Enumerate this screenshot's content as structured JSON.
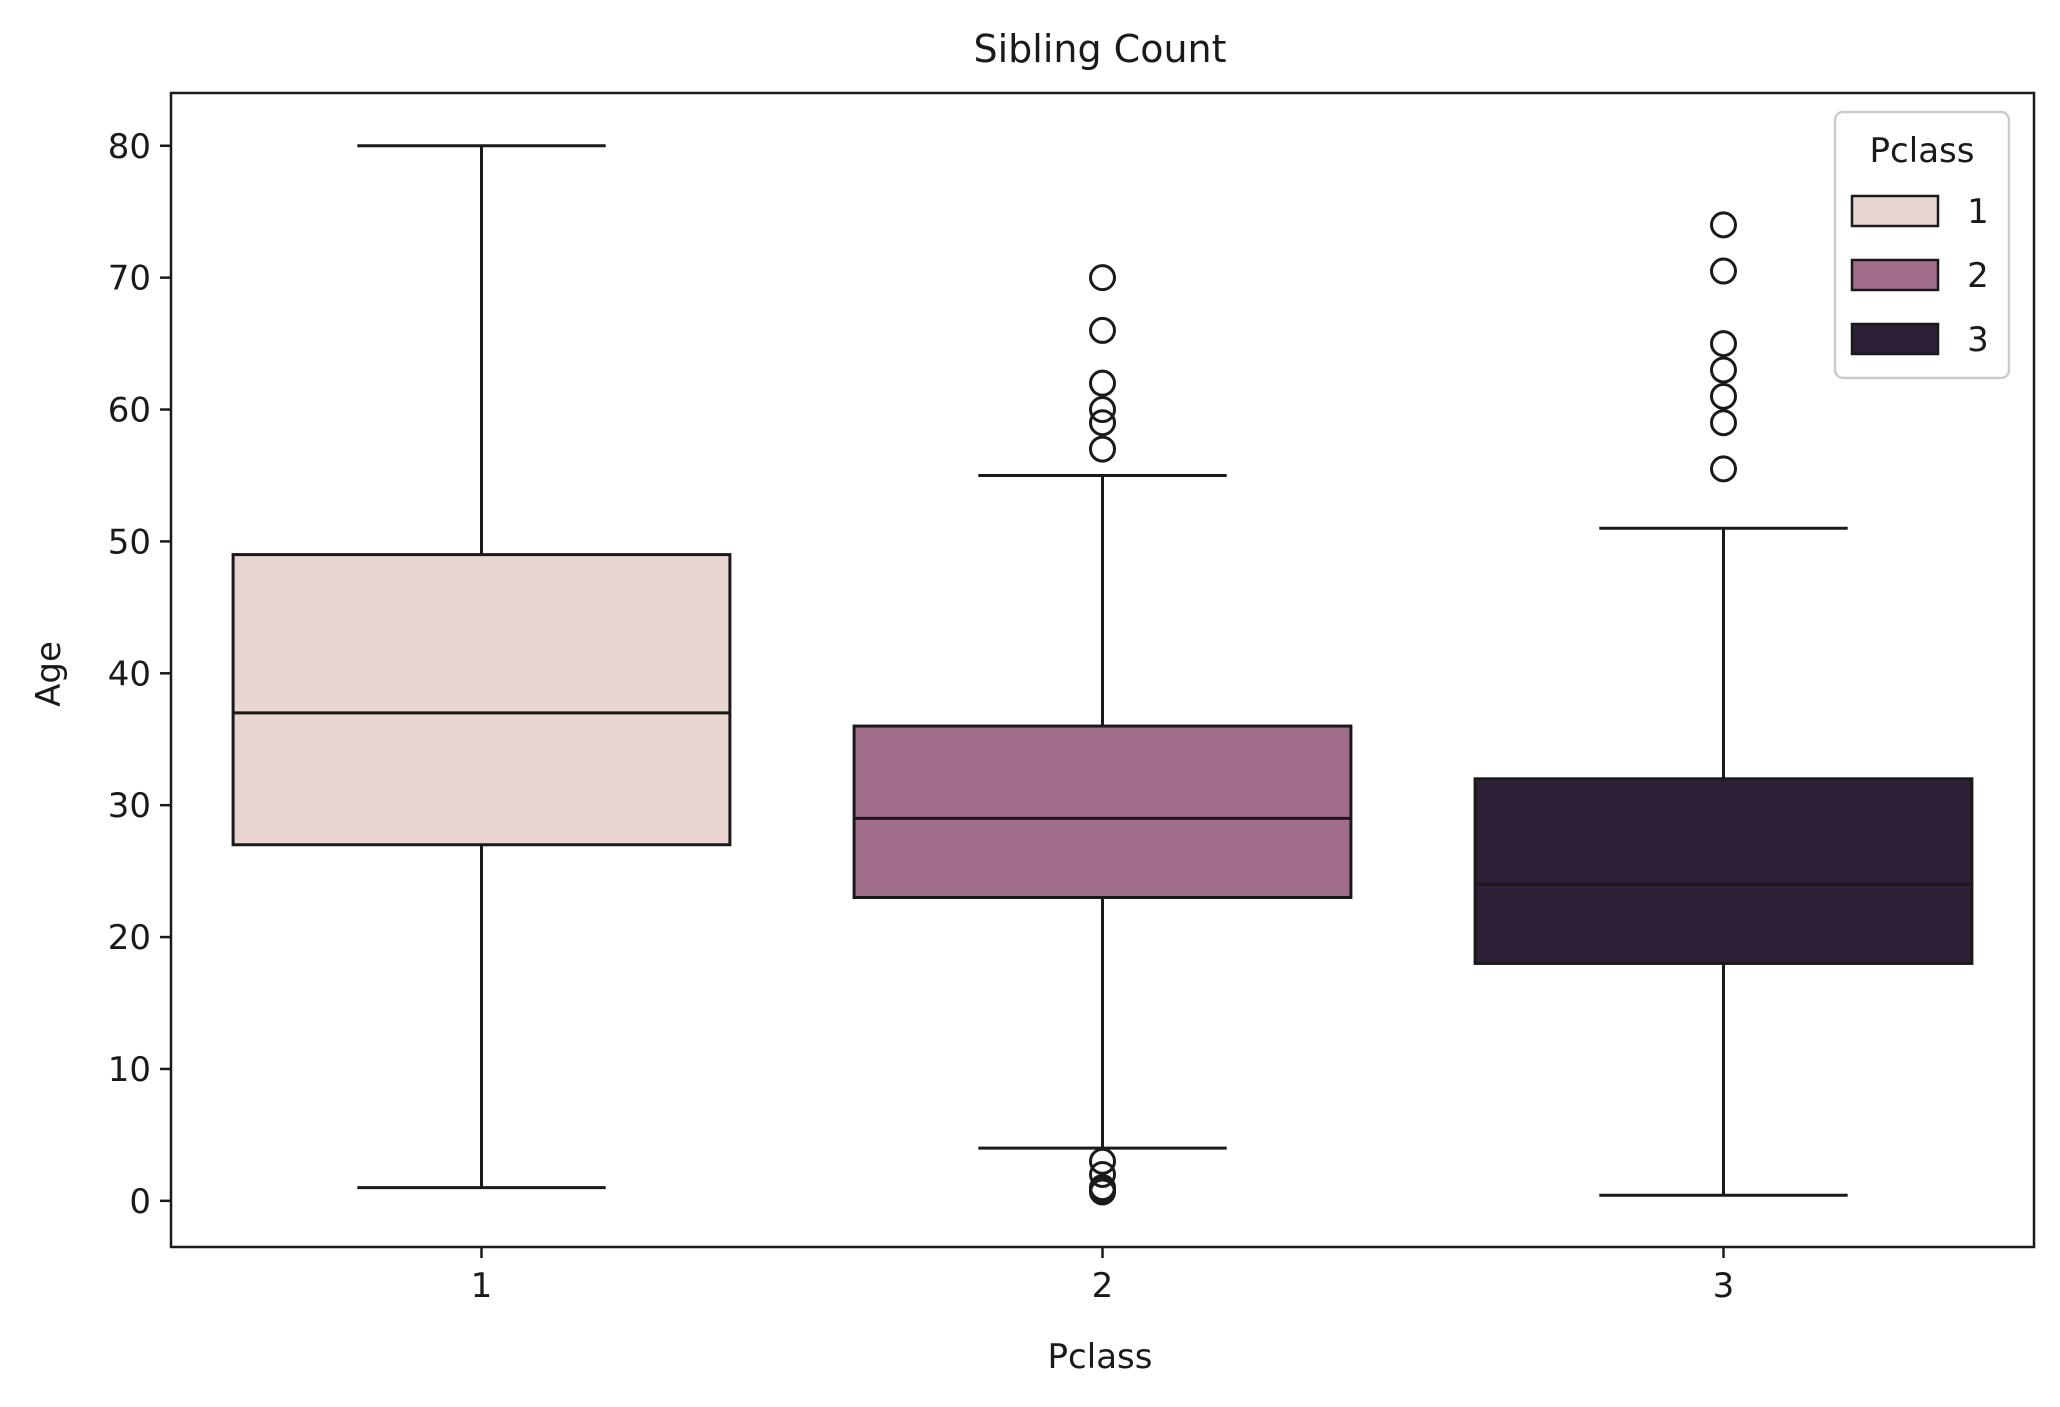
{
  "chart_data": {
    "type": "box",
    "title": "Sibling Count",
    "xlabel": "Pclass",
    "ylabel": "Age",
    "categories": [
      "1",
      "2",
      "3"
    ],
    "ylim": [
      -3.5,
      84
    ],
    "yticks": [
      0,
      10,
      20,
      30,
      40,
      50,
      60,
      70,
      80
    ],
    "grid": false,
    "legend": {
      "title": "Pclass",
      "position": "top-right",
      "entries": [
        "1",
        "2",
        "3"
      ]
    },
    "colors": {
      "1": "#e8d4d0",
      "2": "#a06e8b",
      "3": "#2e2137",
      "edge": "#1a1a1a"
    },
    "series": [
      {
        "category": "1",
        "whisker_low": 1,
        "q1": 27,
        "median": 37,
        "q3": 49,
        "whisker_high": 80,
        "outliers": []
      },
      {
        "category": "2",
        "whisker_low": 4,
        "q1": 23,
        "median": 29,
        "q3": 36,
        "whisker_high": 55,
        "outliers": [
          70,
          66,
          62,
          60,
          59,
          57,
          3,
          2,
          1,
          0.83,
          0.67
        ]
      },
      {
        "category": "3",
        "whisker_low": 0.42,
        "q1": 18,
        "median": 24,
        "q3": 32,
        "whisker_high": 51,
        "outliers": [
          74,
          70.5,
          65,
          63,
          61,
          59,
          55.5
        ]
      }
    ]
  }
}
